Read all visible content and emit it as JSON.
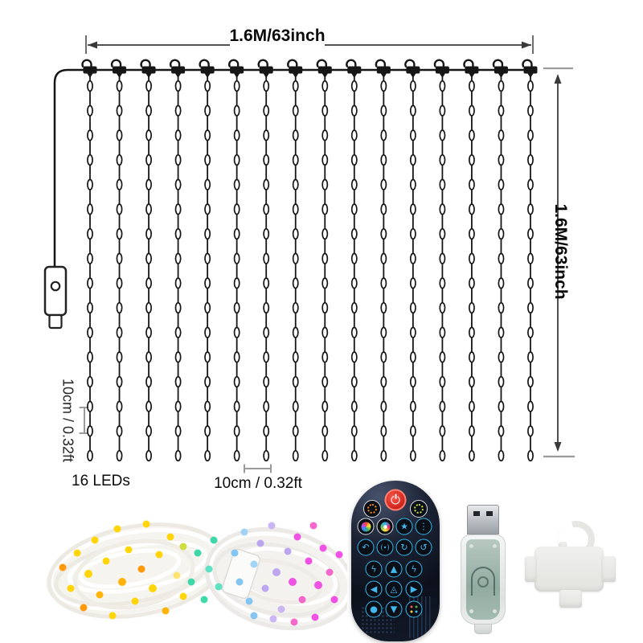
{
  "page": {
    "background": "#ffffff"
  },
  "diagram": {
    "top_width_label": "1.6M/63inch",
    "side_height_label": "1.6M/63inch",
    "vertical_spacing_label": "10cm / 0.32ft",
    "horizontal_spacing_label": "10cm / 0.32ft",
    "led_count_label": "16 LEDs",
    "curtain": {
      "string_count": 16,
      "leds_per_string": 16
    },
    "line_color": "#161616",
    "dimension_color": "#3a3a3a",
    "bracket_color": "#9b9b9b"
  },
  "products": {
    "light_bundle": {
      "wire_color": "#f2efe9",
      "led_palette": [
        "#ffd400",
        "#ffb100",
        "#ff9500",
        "#cddc39",
        "#35d6a5",
        "#7fc3f2",
        "#b9a3ef",
        "#ef49e3",
        "#f361c9"
      ]
    },
    "remote": {
      "body_color": "#10151f",
      "accent_blue": "#35b7ea",
      "power_red": "#d6281f",
      "glyphs": {
        "star": "★",
        "dots": "⋮",
        "undo": "↶",
        "mode": "(∙)",
        "rotate_cw": "↻",
        "rotate_ccw": "↺",
        "flash": "ϟ",
        "up": "▲",
        "down": "▼",
        "left": "◀",
        "right": "▶",
        "twinkle": "◬",
        "dot": "●"
      }
    },
    "usb": {
      "plug_color": "#b9bdc2",
      "body_tint": "#cfd9d4"
    },
    "hook": {
      "color": "#ebebe9"
    }
  }
}
